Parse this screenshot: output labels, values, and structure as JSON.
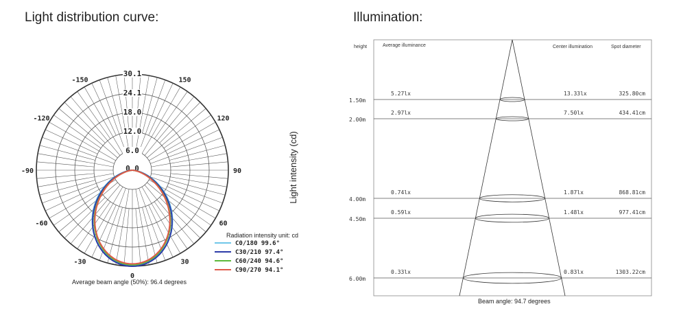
{
  "titles": {
    "left": "Light distribution curve:",
    "right": "Illumination:"
  },
  "polar": {
    "ring_labels": [
      "0 0",
      "6.0",
      "12.0",
      "18.0",
      "24.1",
      "30.1"
    ],
    "angle_labels": [
      {
        "text": "0",
        "deg": 0
      },
      {
        "text": "30",
        "deg": 30
      },
      {
        "text": "60",
        "deg": 60
      },
      {
        "text": "90",
        "deg": 90
      },
      {
        "text": "120",
        "deg": 120
      },
      {
        "text": "150",
        "deg": 150
      },
      {
        "text": "-30",
        "deg": -30
      },
      {
        "text": "-60",
        "deg": -60
      },
      {
        "text": "-90",
        "deg": -90
      },
      {
        "text": "-120",
        "deg": -120
      },
      {
        "text": "-150",
        "deg": -150
      }
    ],
    "axis_label": "Light intensity (cd)",
    "legend_title": "Radiation intensity unit: cd",
    "legend": [
      {
        "label": "C0/180 99.6°",
        "color": "#6ec6e8"
      },
      {
        "label": "C30/210 97.4°",
        "color": "#2b3aa8"
      },
      {
        "label": "C60/240 94.6°",
        "color": "#5cb83a"
      },
      {
        "label": "C90/270 94.1°",
        "color": "#e05a4a"
      }
    ],
    "beam_note": "Average beam angle (50%): 96.4 degrees"
  },
  "illumination": {
    "headers": {
      "height": "height",
      "avg": "Average illuminance",
      "center": "Center illumination",
      "spot": "Spot diameter"
    },
    "rows": [
      {
        "height": "1.50m",
        "avg": "5.27lx",
        "center": "13.33lx",
        "spot": "325.80cm"
      },
      {
        "height": "2.00m",
        "avg": "2.97lx",
        "center": "7.50lx",
        "spot": "434.41cm"
      },
      {
        "height": "4.00m",
        "avg": "0.74lx",
        "center": "1.87lx",
        "spot": "868.81cm"
      },
      {
        "height": "4.50m",
        "avg": "0.59lx",
        "center": "1.48lx",
        "spot": "977.41cm"
      },
      {
        "height": "6.00m",
        "avg": "0.33lx",
        "center": "0.83lx",
        "spot": "1303.22cm"
      }
    ],
    "beam_note": "Beam angle: 94.7 degrees"
  }
}
